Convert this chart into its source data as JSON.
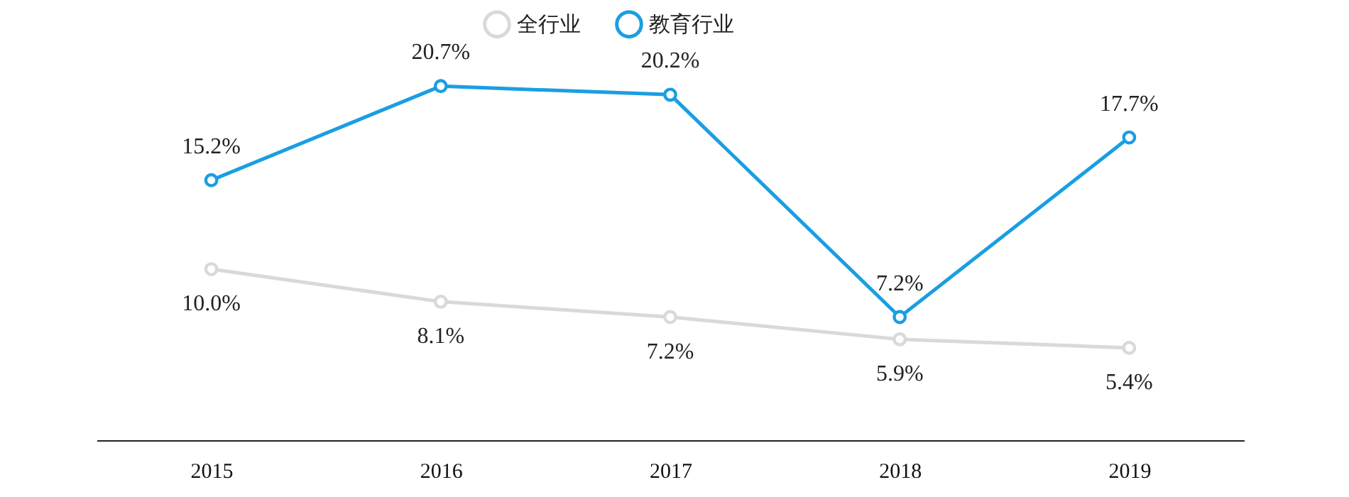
{
  "chart_data": {
    "type": "line",
    "categories": [
      "2015",
      "2016",
      "2017",
      "2018",
      "2019"
    ],
    "series": [
      {
        "name": "全行业",
        "color": "#d9d9d9",
        "values": [
          10.0,
          8.1,
          7.2,
          5.9,
          5.4
        ],
        "value_labels": [
          "10.0%",
          "8.1%",
          "7.2%",
          "5.9%",
          "5.4%"
        ]
      },
      {
        "name": "教育行业",
        "color": "#1a9ee2",
        "values": [
          15.2,
          20.7,
          20.2,
          7.2,
          17.7
        ],
        "value_labels": [
          "15.2%",
          "20.7%",
          "20.2%",
          "7.2%",
          "17.7%"
        ]
      }
    ],
    "legend": "top",
    "marker": "circle",
    "grid": false,
    "tick_labels": "x"
  }
}
